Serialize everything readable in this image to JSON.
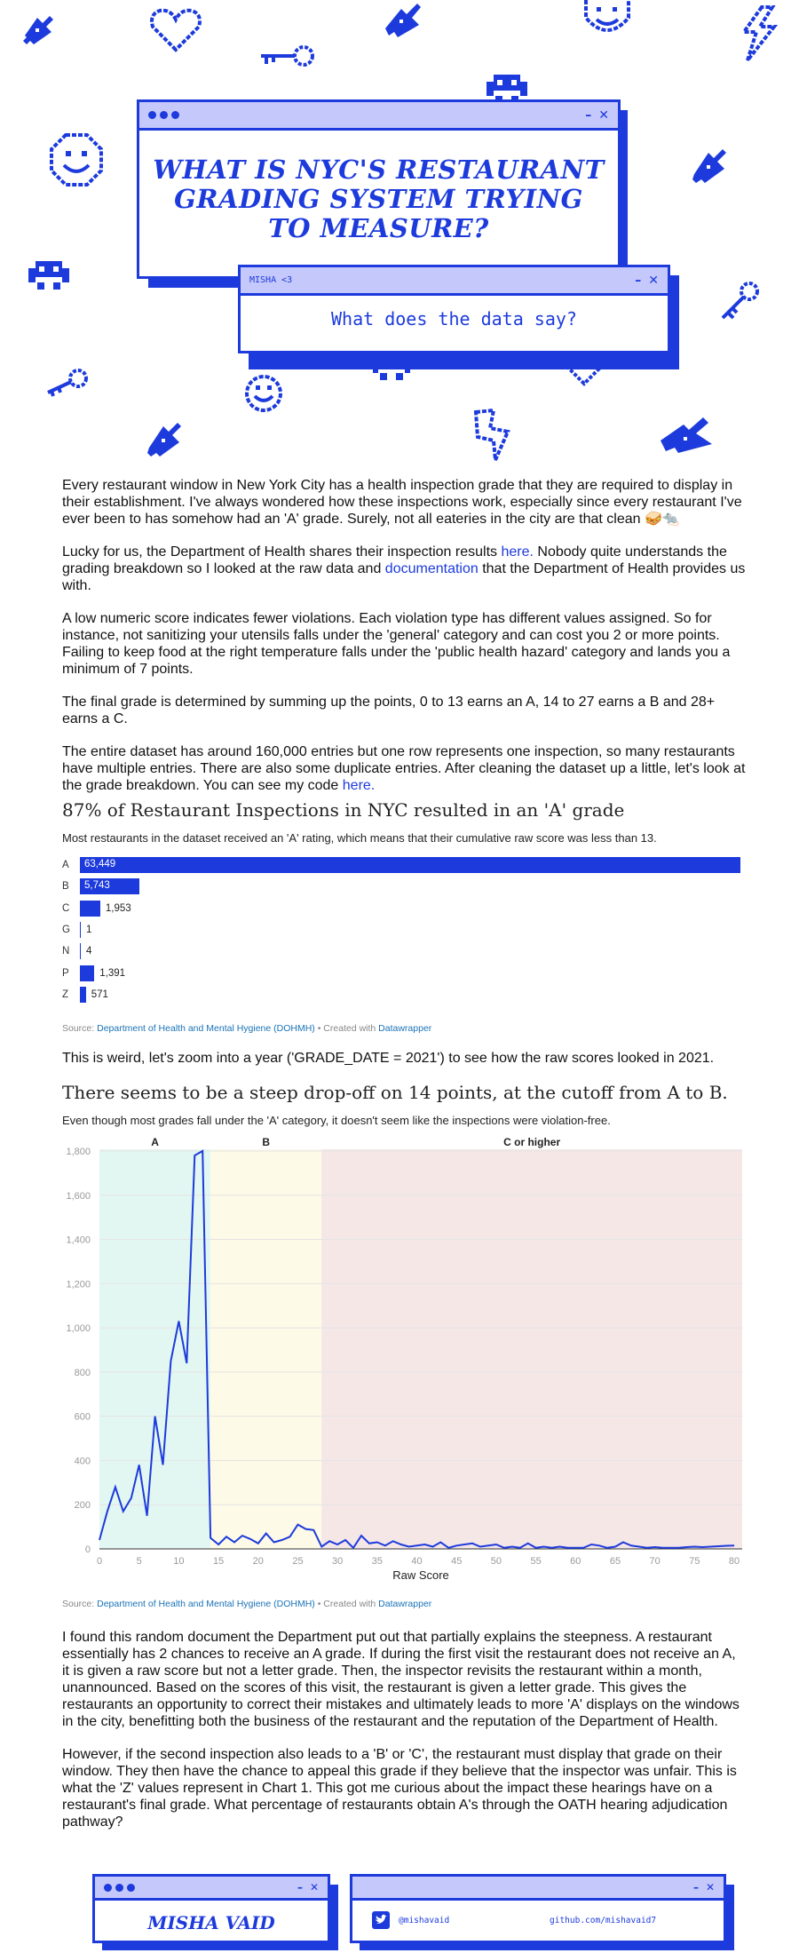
{
  "hero": {
    "title": "What is NYC's restaurant grading system trying to measure?",
    "subtitle_window_tag": "MISHA <3",
    "subtitle": "What does the data say?",
    "controls": {
      "minimize": "–",
      "close": "✕"
    }
  },
  "decorations": [
    "ship-icon",
    "heart-icon",
    "ship-icon",
    "smiley-icon",
    "lightning-icon",
    "key-icon",
    "invader-icon",
    "smiley-icon",
    "ship-icon",
    "invader-icon",
    "key-icon",
    "key-icon",
    "invader-icon",
    "heart-icon",
    "smiley-icon",
    "ship-icon",
    "lightning-icon",
    "ship-icon"
  ],
  "intro": {
    "p1": "Every restaurant window in New York City has a health inspection grade that they are required to display in their establishment. I've always wondered how these inspections work, especially since every restaurant I've ever been to has somehow had an 'A' grade. Surely, not all eateries in the city are that clean 🥪🐀",
    "p2_before": "Lucky for us, the Department of Health shares their inspection results ",
    "p2_link1": "here.",
    "p2_middle": " Nobody quite understands the grading breakdown so I looked at the raw data and ",
    "p2_link2": "documentation",
    "p2_after": " that the Department of Health provides us with.",
    "p3": "A low numeric score indicates fewer violations. Each violation type has different values assigned. So for instance, not sanitizing your utensils falls under the 'general' category and can cost you 2 or more points. Failing to keep food at the right temperature falls under the 'public health hazard' category and lands you a minimum of 7 points.",
    "p4": "The final grade is determined by summing up the points, 0 to 13 earns an A, 14 to 27 earns a B and 28+ earns a C.",
    "p5_before": "The entire dataset has around 160,000 entries but one row represents one inspection, so many restaurants have multiple entries. There are also some duplicate entries. After cleaning the dataset up a little, let's look at the grade breakdown. You can see my code ",
    "p5_link": "here."
  },
  "chart1": {
    "title": "87% of Restaurant Inspections in NYC resulted in an 'A' grade",
    "subtitle": "Most restaurants in the dataset received an 'A' rating, which means that their cumulative raw score was less than 13.",
    "source_label": "Source: ",
    "source_link": "Department of Health and Mental Hygiene (DOHMH)",
    "created_with": " • Created with ",
    "tool": "Datawrapper"
  },
  "middle": {
    "p6": "This is weird, let's zoom into a year ('GRADE_DATE = 2021') to see how the raw scores looked in 2021."
  },
  "chart2": {
    "title": "There seems to be a steep drop-off on 14 points, at the cutoff from A to B.",
    "subtitle": "Even though most grades fall under the 'A' category, it doesn't seem like the inspections were violation-free.",
    "source_label": "Source: ",
    "source_link": "Department of Health and Mental Hygiene (DOHMH)",
    "created_with": " • Created with ",
    "tool": "Datawrapper"
  },
  "outro": {
    "p7": "I found this random document the Department put out that partially explains the steepness. A restaurant essentially has 2 chances to receive an A grade. If during the first visit the restaurant does not receive an A, it is given a raw score but not a letter grade. Then, the inspector revisits the restaurant within a month, unannounced. Based on the scores of this visit, the restaurant is given a letter grade. This gives the restaurants an opportunity to correct their mistakes and ultimately leads to more 'A' displays on the windows in the city, benefitting both the business of the restaurant and the reputation of the Department of Health.",
    "p8": "However, if the second inspection also leads to a 'B' or 'C', the restaurant must display that grade on their window. They then have the chance to appeal this grade if they believe that the inspector was unfair. This is what the 'Z' values represent in Chart 1. This got me curious about the impact these hearings have on a restaurant's final grade. What percentage of restaurants obtain A's through the OATH hearing adjudication pathway?"
  },
  "footer": {
    "name": "Misha Vaid",
    "twitter": "@mishavaid",
    "github": "github.com/mishavaid7"
  },
  "colors": {
    "accent": "#1d3bdc",
    "titlebar": "#c5c8fb",
    "zoneA": "#e3f7f2",
    "zoneB": "#fdfae7",
    "zoneC": "#f6e7e7"
  },
  "chart_data": [
    {
      "type": "bar",
      "title": "87% of Restaurant Inspections in NYC resulted in an 'A' grade",
      "subtitle": "Most restaurants in the dataset received an 'A' rating, which means that their cumulative raw score was less than 13.",
      "categories": [
        "A",
        "B",
        "C",
        "G",
        "N",
        "P",
        "Z"
      ],
      "values": [
        63449,
        5743,
        1953,
        1,
        4,
        1391,
        571
      ],
      "value_labels": [
        "63,449",
        "5,743",
        "1,953",
        "1",
        "4",
        "1,391",
        "571"
      ],
      "orientation": "horizontal",
      "xlim": [
        0,
        63449
      ]
    },
    {
      "type": "line",
      "title": "There seems to be a steep drop-off on 14 points, at the cutoff from A to B.",
      "subtitle": "Even though most grades fall under the 'A' category, it doesn't seem like the inspections were violation-free.",
      "xlabel": "Raw Score",
      "ylabel": "",
      "xlim": [
        0,
        81
      ],
      "ylim": [
        0,
        1800
      ],
      "x_ticks": [
        "0",
        "5",
        "10",
        "15",
        "20",
        "25",
        "30",
        "35",
        "40",
        "45",
        "50",
        "55",
        "60",
        "65",
        "70",
        "75",
        "80"
      ],
      "y_ticks": [
        "0",
        "200",
        "400",
        "600",
        "800",
        "1,000",
        "1,200",
        "1,400",
        "1,600",
        "1,800"
      ],
      "y_tick_values": [
        0,
        200,
        400,
        600,
        800,
        1000,
        1200,
        1400,
        1600,
        1800
      ],
      "x_tick_values": [
        0,
        5,
        10,
        15,
        20,
        25,
        30,
        35,
        40,
        45,
        50,
        55,
        60,
        65,
        70,
        75,
        80
      ],
      "zones": [
        {
          "label": "A",
          "from": 0,
          "to": 14
        },
        {
          "label": "B",
          "from": 14,
          "to": 28
        },
        {
          "label": "C or higher",
          "from": 28,
          "to": 81
        }
      ],
      "grid": true,
      "series": [
        {
          "x": [
            0,
            1,
            2,
            3,
            4,
            5,
            6,
            7,
            8,
            9,
            10,
            11,
            12,
            13,
            14,
            15,
            16,
            17,
            18,
            19,
            20,
            21,
            22,
            23,
            24,
            25,
            26,
            27,
            28,
            29,
            30,
            31,
            32,
            33,
            34,
            35,
            36,
            37,
            38,
            39,
            40,
            41,
            42,
            43,
            44,
            45,
            46,
            47,
            48,
            49,
            50,
            51,
            52,
            53,
            54,
            55,
            56,
            57,
            58,
            59,
            60,
            61,
            62,
            63,
            64,
            65,
            66,
            67,
            68,
            69,
            70,
            71,
            72,
            73,
            74,
            75,
            76,
            77,
            78,
            79,
            80
          ],
          "y": [
            40,
            170,
            280,
            170,
            230,
            380,
            150,
            600,
            380,
            850,
            1030,
            840,
            1780,
            1800,
            50,
            20,
            55,
            30,
            60,
            45,
            25,
            70,
            30,
            40,
            55,
            110,
            90,
            85,
            10,
            35,
            20,
            40,
            5,
            60,
            25,
            30,
            15,
            35,
            20,
            10,
            15,
            20,
            10,
            30,
            5,
            15,
            20,
            25,
            10,
            15,
            20,
            5,
            10,
            5,
            25,
            5,
            10,
            5,
            10,
            5,
            5,
            5,
            20,
            15,
            5,
            10,
            30,
            15,
            10,
            5,
            8,
            5,
            5,
            5,
            8,
            10,
            8,
            10,
            12,
            14,
            15
          ]
        }
      ]
    }
  ]
}
